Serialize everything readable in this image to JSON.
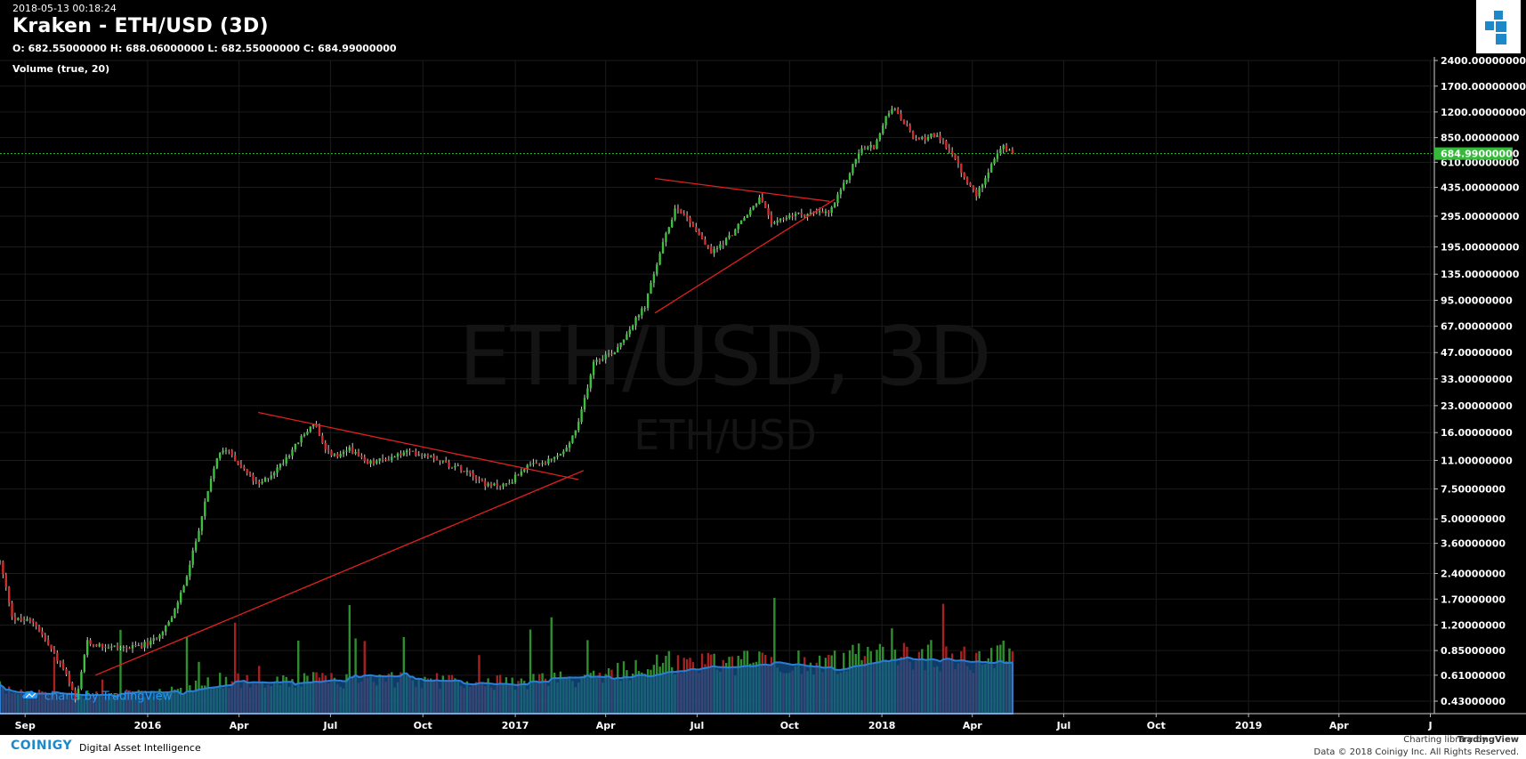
{
  "header": {
    "timestamp": "2018-05-13 00:18:24",
    "title": "Kraken - ETH/USD (3D)",
    "ohlc": "O: 682.55000000 H: 688.06000000 L: 682.55000000 C: 684.99000000",
    "volume_label": "Volume (true, 20)"
  },
  "watermark": {
    "symbol_interval": "ETH/USD, 3D",
    "symbol": "ETH/USD"
  },
  "badge": {
    "text": "charts by TradingView"
  },
  "footer": {
    "brand": "COINIGY",
    "tagline": "Digital Asset Intelligence",
    "charting_library": "Charting library by",
    "tradingview": "TradingView",
    "copyright": "Data © 2018  Coinigy Inc. All Rights Reserved."
  },
  "colors": {
    "up": "#3ec13e",
    "down": "#d62b2b",
    "trendline": "#e02020",
    "price_line": "#36b93a",
    "volume_ma": "#1e66b4",
    "background": "#000000"
  },
  "chart_data": {
    "type": "candlestick",
    "scale": "log",
    "grid": true,
    "last_price": 684.99,
    "last_price_label": "684.99000000",
    "y_ticks": [
      {
        "v": 2400,
        "label": "2400.00000000"
      },
      {
        "v": 1700,
        "label": "1700.00000000"
      },
      {
        "v": 1200,
        "label": "1200.00000000"
      },
      {
        "v": 850,
        "label": "850.00000000"
      },
      {
        "v": 610,
        "label": "610.00000000"
      },
      {
        "v": 435,
        "label": "435.00000000"
      },
      {
        "v": 295,
        "label": "295.00000000"
      },
      {
        "v": 195,
        "label": "195.00000000"
      },
      {
        "v": 135,
        "label": "135.00000000"
      },
      {
        "v": 95,
        "label": "95.00000000"
      },
      {
        "v": 67,
        "label": "67.00000000"
      },
      {
        "v": 47,
        "label": "47.00000000"
      },
      {
        "v": 33,
        "label": "33.00000000"
      },
      {
        "v": 23,
        "label": "23.00000000"
      },
      {
        "v": 16,
        "label": "16.00000000"
      },
      {
        "v": 11,
        "label": "11.00000000"
      },
      {
        "v": 7.5,
        "label": "7.50000000"
      },
      {
        "v": 5.0,
        "label": "5.00000000"
      },
      {
        "v": 3.6,
        "label": "3.60000000"
      },
      {
        "v": 2.4,
        "label": "2.40000000"
      },
      {
        "v": 1.7,
        "label": "1.70000000"
      },
      {
        "v": 1.2,
        "label": "1.20000000"
      },
      {
        "v": 0.85,
        "label": "0.85000000"
      },
      {
        "v": 0.61,
        "label": "0.61000000"
      },
      {
        "v": 0.43,
        "label": "0.43000000"
      }
    ],
    "x_ticks": [
      {
        "date": "2015-09-01",
        "label": "Sep"
      },
      {
        "date": "2016-01-01",
        "label": "2016"
      },
      {
        "date": "2016-04-01",
        "label": "Apr"
      },
      {
        "date": "2016-07-01",
        "label": "Jul"
      },
      {
        "date": "2016-10-01",
        "label": "Oct"
      },
      {
        "date": "2017-01-01",
        "label": "2017"
      },
      {
        "date": "2017-04-01",
        "label": "Apr"
      },
      {
        "date": "2017-07-01",
        "label": "Jul"
      },
      {
        "date": "2017-10-01",
        "label": "Oct"
      },
      {
        "date": "2018-01-01",
        "label": "2018"
      },
      {
        "date": "2018-04-01",
        "label": "Apr"
      },
      {
        "date": "2018-07-01",
        "label": "Jul"
      },
      {
        "date": "2018-10-01",
        "label": "Oct"
      },
      {
        "date": "2019-01-01",
        "label": "2019"
      },
      {
        "date": "2019-04-01",
        "label": "Apr"
      },
      {
        "date": "2019-07-01",
        "label": "J"
      }
    ],
    "x_range": [
      "2015-08-07",
      "2019-07-05"
    ],
    "price_path": [
      {
        "date": "2015-08-07",
        "price": 2.8
      },
      {
        "date": "2015-08-20",
        "price": 1.3
      },
      {
        "date": "2015-09-10",
        "price": 1.25
      },
      {
        "date": "2015-09-25",
        "price": 0.9
      },
      {
        "date": "2015-10-10",
        "price": 0.65
      },
      {
        "date": "2015-10-22",
        "price": 0.42
      },
      {
        "date": "2015-11-01",
        "price": 0.95
      },
      {
        "date": "2015-11-20",
        "price": 0.9
      },
      {
        "date": "2015-12-15",
        "price": 0.88
      },
      {
        "date": "2016-01-05",
        "price": 0.95
      },
      {
        "date": "2016-01-25",
        "price": 1.3
      },
      {
        "date": "2016-02-10",
        "price": 2.4
      },
      {
        "date": "2016-02-25",
        "price": 5.5
      },
      {
        "date": "2016-03-10",
        "price": 11.5
      },
      {
        "date": "2016-03-20",
        "price": 13.0
      },
      {
        "date": "2016-04-01",
        "price": 10.5
      },
      {
        "date": "2016-04-20",
        "price": 7.8
      },
      {
        "date": "2016-05-10",
        "price": 10.0
      },
      {
        "date": "2016-05-25",
        "price": 13.0
      },
      {
        "date": "2016-06-15",
        "price": 18.5
      },
      {
        "date": "2016-06-25",
        "price": 12.5
      },
      {
        "date": "2016-07-10",
        "price": 11.5
      },
      {
        "date": "2016-07-20",
        "price": 13.0
      },
      {
        "date": "2016-08-05",
        "price": 10.5
      },
      {
        "date": "2016-08-25",
        "price": 11.2
      },
      {
        "date": "2016-09-15",
        "price": 12.3
      },
      {
        "date": "2016-10-10",
        "price": 11.8
      },
      {
        "date": "2016-10-25",
        "price": 10.5
      },
      {
        "date": "2016-11-15",
        "price": 9.6
      },
      {
        "date": "2016-12-05",
        "price": 7.8
      },
      {
        "date": "2016-12-25",
        "price": 8.0
      },
      {
        "date": "2017-01-10",
        "price": 10.0
      },
      {
        "date": "2017-02-01",
        "price": 10.7
      },
      {
        "date": "2017-02-20",
        "price": 12.5
      },
      {
        "date": "2017-03-05",
        "price": 18.0
      },
      {
        "date": "2017-03-20",
        "price": 42.0
      },
      {
        "date": "2017-04-10",
        "price": 48.0
      },
      {
        "date": "2017-04-25",
        "price": 65.0
      },
      {
        "date": "2017-05-10",
        "price": 88.0
      },
      {
        "date": "2017-05-25",
        "price": 180.0
      },
      {
        "date": "2017-06-10",
        "price": 340.0
      },
      {
        "date": "2017-06-25",
        "price": 270.0
      },
      {
        "date": "2017-07-15",
        "price": 180.0
      },
      {
        "date": "2017-08-01",
        "price": 220.0
      },
      {
        "date": "2017-08-20",
        "price": 300.0
      },
      {
        "date": "2017-09-01",
        "price": 380.0
      },
      {
        "date": "2017-09-15",
        "price": 260.0
      },
      {
        "date": "2017-10-01",
        "price": 300.0
      },
      {
        "date": "2017-10-20",
        "price": 305.0
      },
      {
        "date": "2017-11-10",
        "price": 310.0
      },
      {
        "date": "2017-11-25",
        "price": 460.0
      },
      {
        "date": "2017-12-10",
        "price": 720.0
      },
      {
        "date": "2017-12-25",
        "price": 760.0
      },
      {
        "date": "2018-01-10",
        "price": 1300.0
      },
      {
        "date": "2018-01-22",
        "price": 1050.0
      },
      {
        "date": "2018-02-05",
        "price": 800.0
      },
      {
        "date": "2018-02-20",
        "price": 900.0
      },
      {
        "date": "2018-03-10",
        "price": 720.0
      },
      {
        "date": "2018-03-25",
        "price": 480.0
      },
      {
        "date": "2018-04-05",
        "price": 390.0
      },
      {
        "date": "2018-04-20",
        "price": 600.0
      },
      {
        "date": "2018-05-01",
        "price": 750.0
      },
      {
        "date": "2018-05-13",
        "price": 684.99
      }
    ],
    "trendlines": [
      {
        "from": {
          "date": "2015-11-10",
          "price": 0.61
        },
        "to": {
          "date": "2017-03-10",
          "price": 9.6
        }
      },
      {
        "from": {
          "date": "2016-04-20",
          "price": 21.0
        },
        "to": {
          "date": "2017-03-05",
          "price": 8.5
        }
      },
      {
        "from": {
          "date": "2017-05-20",
          "price": 80.0
        },
        "to": {
          "date": "2017-11-15",
          "price": 370.0
        }
      },
      {
        "from": {
          "date": "2017-05-20",
          "price": 490.0
        },
        "to": {
          "date": "2017-11-10",
          "price": 360.0
        }
      }
    ]
  }
}
